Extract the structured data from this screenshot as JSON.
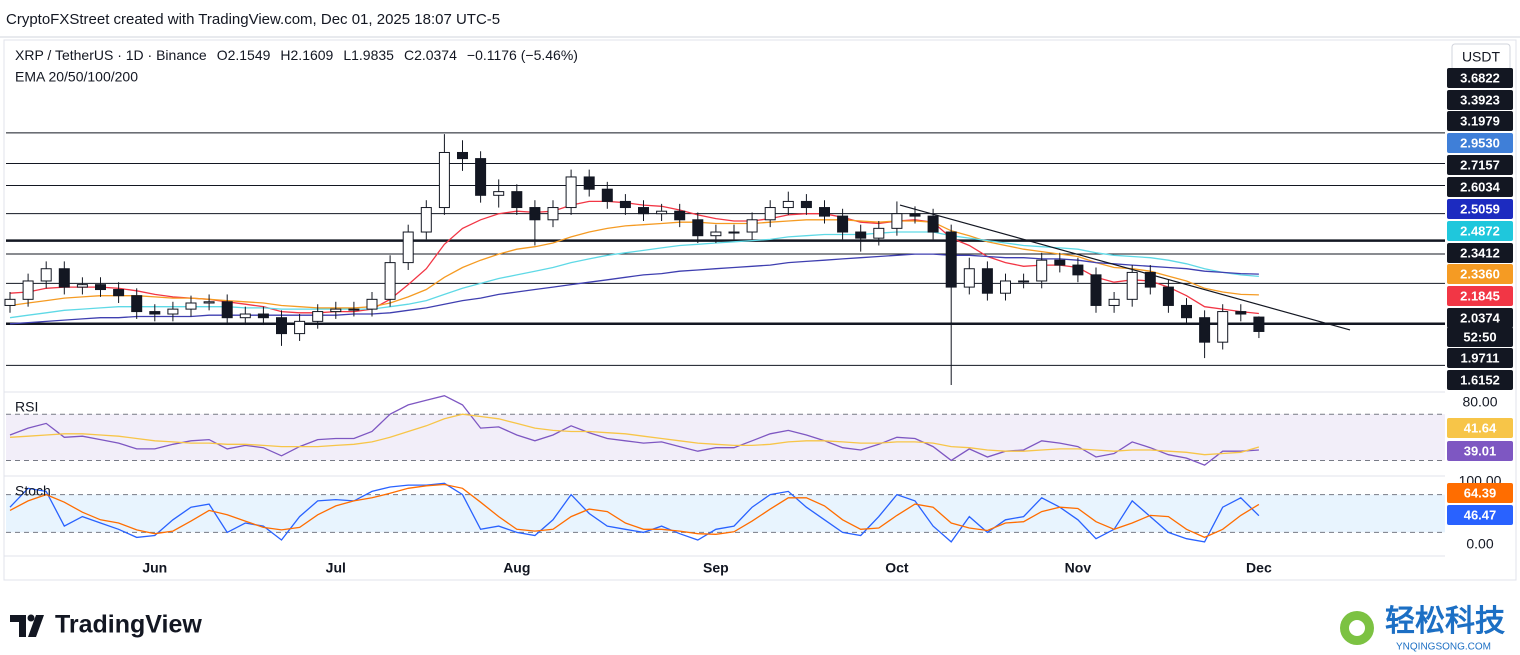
{
  "header": {
    "credit": "CryptoFXStreet created with TradingView.com, Dec 01, 2025 18:07 UTC-5",
    "symbol": "XRP / TetherUS · 1D · Binance",
    "ohlc": [
      "O2.1549",
      "H2.1609",
      "L1.9835",
      "C2.0374"
    ],
    "change": "−0.1176 (−5.46%)",
    "indicator": "EMA 20/50/100/200",
    "currency": "USDT"
  },
  "price_tags": [
    {
      "label": "3.6822",
      "color": "#131722"
    },
    {
      "label": "3.3923",
      "color": "#131722"
    },
    {
      "label": "3.1979",
      "color": "#131722"
    },
    {
      "label": "2.9530",
      "color": "#3f7fd8"
    },
    {
      "label": "2.7157",
      "color": "#131722"
    },
    {
      "label": "2.6034",
      "color": "#131722"
    },
    {
      "label": "2.5059",
      "color": "#1c2bc0"
    },
    {
      "label": "2.4872",
      "color": "#1fc7dc"
    },
    {
      "label": "2.3412",
      "color": "#131722"
    },
    {
      "label": "2.3360",
      "color": "#f59b23"
    },
    {
      "label": "2.1845",
      "color": "#f23645"
    },
    {
      "label": "2.0374",
      "color": "#131722"
    },
    {
      "label": "52:50",
      "color": "#131722"
    },
    {
      "label": "1.9711",
      "color": "#131722"
    },
    {
      "label": "1.6152",
      "color": "#131722"
    }
  ],
  "chart_data": [
    {
      "type": "candlestick",
      "ylim": [
        1.6,
        3.7
      ],
      "up_color": "#ffffff",
      "down_color": "#131722",
      "categories": [
        null,
        null,
        null,
        null,
        null,
        null,
        null,
        null,
        "Jun",
        null,
        null,
        null,
        null,
        null,
        null,
        null,
        null,
        null,
        "Jul",
        null,
        null,
        null,
        null,
        null,
        null,
        null,
        null,
        null,
        "Aug",
        null,
        null,
        null,
        null,
        null,
        null,
        null,
        null,
        null,
        null,
        "Sep",
        null,
        null,
        null,
        null,
        null,
        null,
        null,
        null,
        null,
        "Oct",
        null,
        null,
        null,
        null,
        null,
        null,
        null,
        null,
        null,
        "Nov",
        null,
        null,
        null,
        null,
        null,
        null,
        null,
        null,
        null,
        "Dec"
      ],
      "open": [
        2.25,
        2.3,
        2.45,
        2.55,
        2.4,
        2.42,
        2.38,
        2.33,
        2.2,
        2.18,
        2.22,
        2.27,
        2.28,
        2.15,
        2.18,
        2.15,
        2.02,
        2.12,
        2.2,
        2.22,
        2.22,
        2.3,
        2.6,
        2.85,
        3.05,
        3.5,
        3.45,
        3.15,
        3.18,
        3.05,
        2.95,
        3.05,
        3.3,
        3.2,
        3.1,
        3.05,
        3.0,
        3.02,
        2.95,
        2.82,
        2.85,
        2.85,
        2.95,
        3.05,
        3.1,
        3.05,
        2.98,
        2.85,
        2.8,
        2.88,
        3.0,
        2.98,
        2.85,
        2.4,
        2.55,
        2.35,
        2.45,
        2.45,
        2.62,
        2.58,
        2.5,
        2.25,
        2.3,
        2.52,
        2.4,
        2.25,
        2.15,
        1.95,
        2.2,
        2.1549
      ],
      "high": [
        2.36,
        2.51,
        2.61,
        2.61,
        2.48,
        2.48,
        2.44,
        2.39,
        2.26,
        2.28,
        2.33,
        2.34,
        2.34,
        2.24,
        2.24,
        2.21,
        2.18,
        2.26,
        2.28,
        2.28,
        2.36,
        2.66,
        2.91,
        3.11,
        3.65,
        3.6,
        3.51,
        3.28,
        3.24,
        3.11,
        3.11,
        3.36,
        3.36,
        3.26,
        3.16,
        3.11,
        3.08,
        3.08,
        3.01,
        2.91,
        2.91,
        3.01,
        3.11,
        3.18,
        3.16,
        3.11,
        3.04,
        2.91,
        2.94,
        3.1,
        3.06,
        3.04,
        2.91,
        2.64,
        2.61,
        2.51,
        2.51,
        2.68,
        2.68,
        2.64,
        2.56,
        2.36,
        2.58,
        2.58,
        2.46,
        2.31,
        2.21,
        2.26,
        2.26,
        2.1609
      ],
      "low": [
        2.19,
        2.24,
        2.39,
        2.34,
        2.34,
        2.32,
        2.27,
        2.14,
        2.12,
        2.12,
        2.16,
        2.21,
        2.09,
        2.09,
        2.09,
        1.92,
        1.96,
        2.06,
        2.14,
        2.16,
        2.16,
        2.24,
        2.54,
        2.79,
        2.99,
        3.35,
        3.09,
        3.05,
        2.99,
        2.74,
        2.89,
        2.99,
        3.14,
        3.04,
        2.99,
        2.94,
        2.94,
        2.89,
        2.76,
        2.76,
        2.79,
        2.79,
        2.89,
        2.99,
        2.99,
        2.92,
        2.79,
        2.69,
        2.74,
        2.82,
        2.92,
        2.79,
        1.6,
        2.34,
        2.29,
        2.29,
        2.39,
        2.39,
        2.52,
        2.44,
        2.19,
        2.19,
        2.24,
        2.34,
        2.19,
        2.09,
        1.82,
        1.89,
        2.12,
        1.9835
      ],
      "close": [
        2.3,
        2.45,
        2.55,
        2.4,
        2.42,
        2.38,
        2.33,
        2.2,
        2.18,
        2.22,
        2.27,
        2.28,
        2.15,
        2.18,
        2.15,
        2.02,
        2.12,
        2.2,
        2.22,
        2.22,
        2.3,
        2.6,
        2.85,
        3.05,
        3.5,
        3.45,
        3.15,
        3.18,
        3.05,
        2.95,
        3.05,
        3.3,
        3.2,
        3.1,
        3.05,
        3.0,
        3.02,
        2.95,
        2.82,
        2.85,
        2.85,
        2.95,
        3.05,
        3.1,
        3.05,
        2.98,
        2.85,
        2.8,
        2.88,
        3.0,
        2.98,
        2.85,
        2.4,
        2.55,
        2.35,
        2.45,
        2.45,
        2.62,
        2.58,
        2.5,
        2.25,
        2.3,
        2.52,
        2.4,
        2.25,
        2.15,
        1.95,
        2.2,
        2.18,
        2.0374
      ],
      "series": [
        {
          "color": "#f23645",
          "values": [
            2.35,
            2.36,
            2.39,
            2.4,
            2.4,
            2.4,
            2.39,
            2.37,
            2.34,
            2.32,
            2.31,
            2.3,
            2.28,
            2.26,
            2.24,
            2.2,
            2.19,
            2.19,
            2.2,
            2.2,
            2.22,
            2.3,
            2.42,
            2.55,
            2.75,
            2.88,
            2.95,
            3.0,
            3.02,
            3.01,
            3.02,
            3.07,
            3.1,
            3.1,
            3.09,
            3.07,
            3.06,
            3.03,
            2.99,
            2.96,
            2.94,
            2.94,
            2.96,
            2.99,
            3.0,
            3.0,
            2.97,
            2.93,
            2.92,
            2.94,
            2.95,
            2.93,
            2.8,
            2.74,
            2.65,
            2.6,
            2.57,
            2.58,
            2.58,
            2.56,
            2.48,
            2.44,
            2.46,
            2.45,
            2.4,
            2.33,
            2.24,
            2.22,
            2.2,
            2.1845
          ]
        },
        {
          "color": "#f59b23",
          "values": [
            2.25,
            2.27,
            2.29,
            2.31,
            2.32,
            2.33,
            2.33,
            2.33,
            2.32,
            2.31,
            2.31,
            2.3,
            2.29,
            2.28,
            2.27,
            2.25,
            2.24,
            2.23,
            2.23,
            2.23,
            2.24,
            2.27,
            2.32,
            2.38,
            2.48,
            2.56,
            2.62,
            2.67,
            2.71,
            2.73,
            2.76,
            2.81,
            2.85,
            2.88,
            2.9,
            2.91,
            2.92,
            2.93,
            2.93,
            2.92,
            2.92,
            2.92,
            2.93,
            2.94,
            2.95,
            2.95,
            2.95,
            2.94,
            2.93,
            2.94,
            2.94,
            2.93,
            2.86,
            2.82,
            2.77,
            2.74,
            2.71,
            2.69,
            2.67,
            2.65,
            2.6,
            2.56,
            2.55,
            2.53,
            2.49,
            2.45,
            2.39,
            2.36,
            2.34,
            2.336
          ]
        },
        {
          "color": "#5fd9e6",
          "values": [
            2.15,
            2.17,
            2.19,
            2.21,
            2.22,
            2.23,
            2.24,
            2.24,
            2.24,
            2.24,
            2.24,
            2.24,
            2.24,
            2.23,
            2.23,
            2.22,
            2.22,
            2.22,
            2.22,
            2.22,
            2.22,
            2.24,
            2.26,
            2.29,
            2.34,
            2.39,
            2.43,
            2.47,
            2.5,
            2.53,
            2.56,
            2.6,
            2.63,
            2.66,
            2.68,
            2.7,
            2.72,
            2.74,
            2.75,
            2.76,
            2.77,
            2.78,
            2.79,
            2.81,
            2.82,
            2.83,
            2.83,
            2.83,
            2.84,
            2.85,
            2.85,
            2.85,
            2.82,
            2.8,
            2.78,
            2.76,
            2.74,
            2.73,
            2.72,
            2.71,
            2.68,
            2.66,
            2.65,
            2.64,
            2.62,
            2.59,
            2.55,
            2.52,
            2.5,
            2.4872
          ]
        },
        {
          "color": "#3f3fb0",
          "values": [
            2.1,
            2.11,
            2.12,
            2.13,
            2.14,
            2.15,
            2.15,
            2.16,
            2.16,
            2.16,
            2.16,
            2.17,
            2.17,
            2.17,
            2.17,
            2.17,
            2.17,
            2.17,
            2.17,
            2.18,
            2.18,
            2.19,
            2.21,
            2.23,
            2.26,
            2.29,
            2.31,
            2.34,
            2.36,
            2.38,
            2.4,
            2.42,
            2.44,
            2.46,
            2.48,
            2.5,
            2.51,
            2.53,
            2.54,
            2.55,
            2.56,
            2.57,
            2.58,
            2.6,
            2.61,
            2.62,
            2.63,
            2.64,
            2.65,
            2.66,
            2.67,
            2.67,
            2.66,
            2.66,
            2.65,
            2.64,
            2.64,
            2.63,
            2.63,
            2.62,
            2.6,
            2.59,
            2.58,
            2.57,
            2.56,
            2.55,
            2.53,
            2.52,
            2.51,
            2.5059
          ]
        }
      ],
      "levels": [
        {
          "value": 3.66,
          "style": "thin"
        },
        {
          "value": 3.41,
          "style": "thin"
        },
        {
          "value": 3.23,
          "style": "thin"
        },
        {
          "value": 3.0,
          "style": "thin"
        },
        {
          "value": 2.78,
          "style": "bold"
        },
        {
          "value": 2.67,
          "style": "thin"
        },
        {
          "value": 2.43,
          "style": "thin"
        },
        {
          "value": 2.1,
          "style": "bold"
        },
        {
          "value": 1.76,
          "style": "thin"
        }
      ],
      "trendline": {
        "color": "#131722",
        "values": [
          3.07,
          2.05
        ]
      }
    },
    {
      "type": "line",
      "title": "RSI",
      "ylim": [
        20,
        84
      ],
      "yticks": [
        {
          "value": 80,
          "label": "80.00"
        }
      ],
      "bands": [
        70,
        30
      ],
      "band_color": "#7e57c2",
      "series": [
        {
          "color": "#7e57c2",
          "values": [
            52,
            58,
            62,
            50,
            51,
            48,
            45,
            40,
            40,
            44,
            47,
            48,
            40,
            43,
            41,
            34,
            42,
            48,
            49,
            49,
            55,
            70,
            78,
            82,
            86,
            78,
            58,
            59,
            52,
            47,
            52,
            60,
            54,
            49,
            47,
            45,
            46,
            42,
            38,
            41,
            41,
            47,
            53,
            56,
            52,
            47,
            41,
            39,
            44,
            50,
            49,
            42,
            30,
            40,
            33,
            38,
            39,
            47,
            45,
            42,
            33,
            36,
            46,
            41,
            35,
            32,
            26,
            38,
            38,
            39.01
          ]
        },
        {
          "color": "#f7c548",
          "values": [
            50,
            51,
            52,
            53,
            53,
            52,
            51,
            49,
            47,
            46,
            45,
            45,
            44,
            44,
            43,
            42,
            42,
            42,
            43,
            44,
            46,
            50,
            55,
            60,
            66,
            70,
            68,
            66,
            62,
            58,
            56,
            55,
            55,
            54,
            53,
            51,
            49,
            47,
            45,
            44,
            43,
            43,
            44,
            46,
            47,
            47,
            46,
            45,
            45,
            46,
            46,
            45,
            42,
            41,
            39,
            38,
            38,
            39,
            40,
            40,
            39,
            38,
            39,
            39,
            38,
            37,
            35,
            36,
            37,
            41.64
          ]
        }
      ]
    },
    {
      "type": "line",
      "title": "Stoch",
      "ylim": [
        0,
        100
      ],
      "yticks": [
        {
          "value": 100,
          "label": "100.00"
        },
        {
          "value": 0,
          "label": "0.00"
        }
      ],
      "bands": [
        80,
        20
      ],
      "band_color": "#2196f3",
      "series": [
        {
          "color": "#2962ff",
          "values": [
            60,
            90,
            85,
            30,
            45,
            35,
            25,
            12,
            15,
            40,
            60,
            65,
            20,
            35,
            30,
            8,
            45,
            70,
            72,
            70,
            85,
            92,
            95,
            95,
            98,
            80,
            25,
            30,
            20,
            15,
            40,
            80,
            50,
            30,
            25,
            20,
            30,
            18,
            8,
            25,
            30,
            60,
            80,
            85,
            60,
            40,
            20,
            15,
            45,
            80,
            70,
            30,
            5,
            45,
            20,
            40,
            45,
            75,
            60,
            40,
            10,
            25,
            70,
            45,
            20,
            10,
            5,
            60,
            75,
            46.47
          ]
        },
        {
          "color": "#ff6d00",
          "values": [
            55,
            70,
            80,
            68,
            52,
            40,
            35,
            24,
            18,
            22,
            38,
            55,
            48,
            38,
            28,
            24,
            28,
            48,
            62,
            70,
            75,
            82,
            90,
            94,
            96,
            90,
            68,
            45,
            25,
            22,
            25,
            45,
            57,
            53,
            35,
            25,
            25,
            22,
            18,
            17,
            21,
            38,
            57,
            75,
            75,
            62,
            40,
            25,
            27,
            47,
            65,
            60,
            35,
            27,
            23,
            35,
            37,
            53,
            60,
            58,
            37,
            25,
            35,
            47,
            45,
            25,
            12,
            25,
            47,
            64.39
          ]
        }
      ]
    }
  ],
  "footer": {
    "brand": "TradingView",
    "watermark": "轻松科技",
    "watermark_site": "YNQINGSONG.COM"
  }
}
